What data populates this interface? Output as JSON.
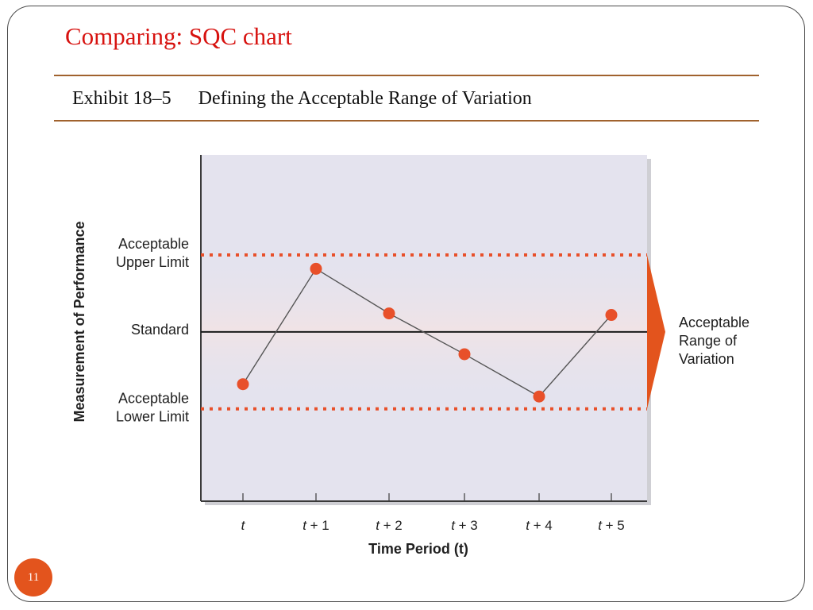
{
  "slide": {
    "title": "Comparing: SQC chart",
    "exhibit_number": "Exhibit 18–5",
    "exhibit_title": "Defining the Acceptable Range of Variation",
    "page_number": "11"
  },
  "chart_data": {
    "type": "line",
    "x_tick_labels": [
      "t",
      "t + 1",
      "t + 2",
      "t + 3",
      "t + 4",
      "t + 5"
    ],
    "values": [
      -0.68,
      0.82,
      0.24,
      -0.29,
      -0.84,
      0.22
    ],
    "upper_limit": 1.0,
    "standard": 0.0,
    "lower_limit": -1.0,
    "ylim": [
      -2.2,
      2.3
    ],
    "xlabel": "Time Period (t)",
    "ylabel": "Measurement of Performance",
    "upper_label": [
      "Acceptable",
      "Upper Limit"
    ],
    "standard_label": "Standard",
    "lower_label": [
      "Acceptable",
      "Lower Limit"
    ],
    "range_label": [
      "Acceptable",
      "Range of",
      "Variation"
    ],
    "colors": {
      "plot_background": "#e4e3ee",
      "band_tint": "#f0e3e6",
      "limit_dots": "#e8502a",
      "point_fill": "#e8502a",
      "line": "#555555",
      "standard_line": "#1a1a1a",
      "arrow": "#e3541d"
    }
  }
}
